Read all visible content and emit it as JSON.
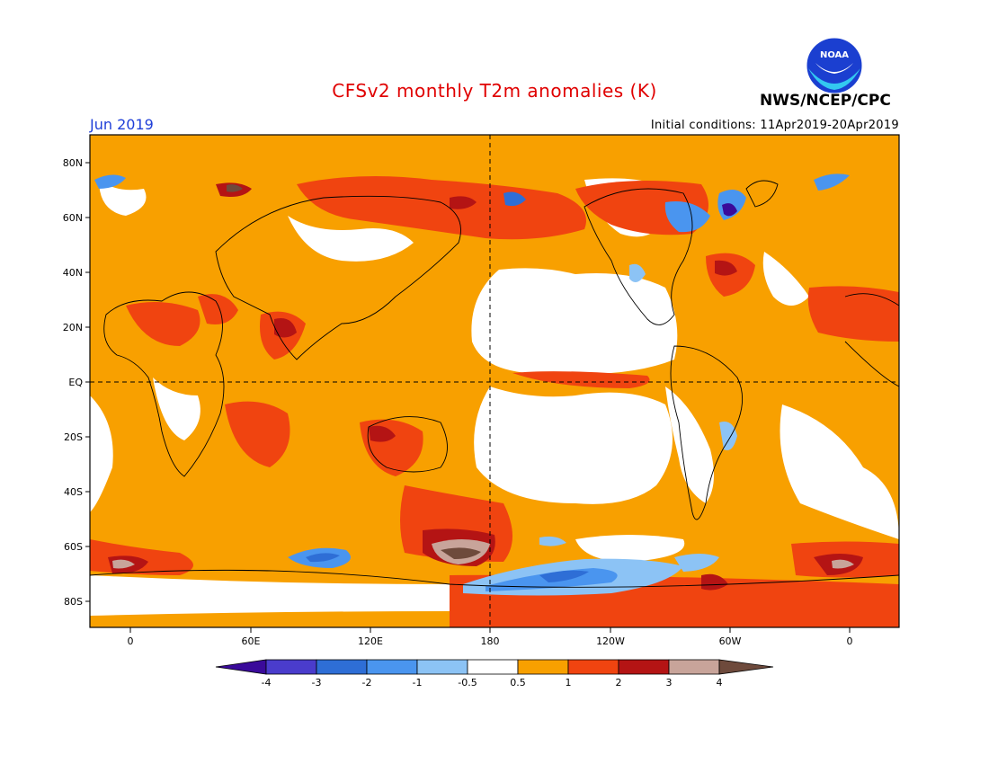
{
  "header": {
    "title": "CFSv2 monthly T2m anomalies (K)",
    "month": "Jun 2019",
    "initial_conditions": "Initial conditions: 11Apr2019-20Apr2019",
    "agency": "NWS/NCEP/CPC",
    "logo": {
      "icon": "noaa-logo",
      "text": "NOAA"
    }
  },
  "map": {
    "projection": "equirectangular",
    "lon_range": [
      -20,
      380
    ],
    "lat_range": [
      -90,
      90
    ],
    "latitude_ticks": [
      "80N",
      "60N",
      "40N",
      "20N",
      "EQ",
      "20S",
      "40S",
      "60S",
      "80S"
    ],
    "longitude_ticks": [
      "0",
      "60E",
      "120E",
      "180",
      "120W",
      "60W",
      "0"
    ],
    "reference_lines": [
      "EQ",
      "180"
    ],
    "colors": {
      "-4": "#3a0a9a",
      "-3": "#4a3ccc",
      "-2": "#2e6ed6",
      "-1": "#4a95ef",
      "-0.5": "#8cc3f5",
      "neutral": "#ffffff",
      "0.5": "#f8a000",
      "1": "#f04410",
      "2": "#b41414",
      "3": "#c8a49a",
      "4": "#6e4a3c"
    }
  },
  "colorbar": {
    "labels": [
      "-4",
      "-3",
      "-2",
      "-1",
      "-0.5",
      "0.5",
      "1",
      "2",
      "3",
      "4"
    ],
    "colors": [
      "#3a0a9a",
      "#4a3ccc",
      "#2e6ed6",
      "#4a95ef",
      "#8cc3f5",
      "#ffffff",
      "#f8a000",
      "#f04410",
      "#b41414",
      "#c8a49a",
      "#6e4a3c"
    ]
  }
}
